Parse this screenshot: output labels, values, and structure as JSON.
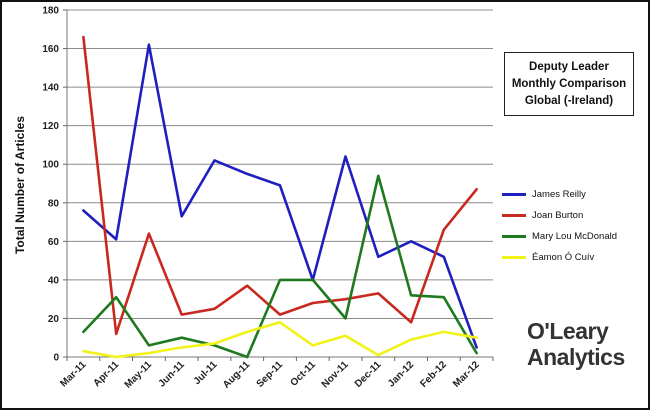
{
  "chart_data": {
    "type": "line",
    "title": [
      "Deputy Leader",
      "Monthly Comparison",
      "Global (-Ireland)"
    ],
    "ylabel": "Total Number of Articles",
    "xlabel": "",
    "ylim": [
      0,
      180
    ],
    "yticks": [
      "0",
      "20",
      "40",
      "60",
      "80",
      "100",
      "120",
      "140",
      "160",
      "180"
    ],
    "categories": [
      "Mar-11",
      "Apr-11",
      "May-11",
      "Jun-11",
      "Jul-11",
      "Aug-11",
      "Sep-11",
      "Oct-11",
      "Nov-11",
      "Dec-11",
      "Jan-12",
      "Feb-12",
      "Mar-12"
    ],
    "grid": true,
    "legend_position": "right",
    "series": [
      {
        "name": "James Reilly",
        "color": "#1f1fbf",
        "values": [
          76,
          61,
          162,
          73,
          102,
          95,
          89,
          40,
          104,
          52,
          60,
          52,
          5
        ]
      },
      {
        "name": "Joan Burton",
        "color": "#c8281e",
        "values": [
          166,
          12,
          64,
          22,
          25,
          37,
          22,
          28,
          30,
          33,
          18,
          66,
          87
        ]
      },
      {
        "name": "Mary Lou McDonald",
        "color": "#1f7a1f",
        "values": [
          13,
          31,
          6,
          10,
          6,
          0,
          40,
          40,
          20,
          94,
          32,
          31,
          2
        ]
      },
      {
        "name": "Éamon Ó Cuív",
        "color": "#f2f218",
        "values": [
          3,
          0,
          2,
          5,
          7,
          13,
          18,
          6,
          11,
          1,
          9,
          13,
          10
        ]
      }
    ]
  },
  "logo": {
    "line1": "O'Leary",
    "line2": "Analytics"
  }
}
